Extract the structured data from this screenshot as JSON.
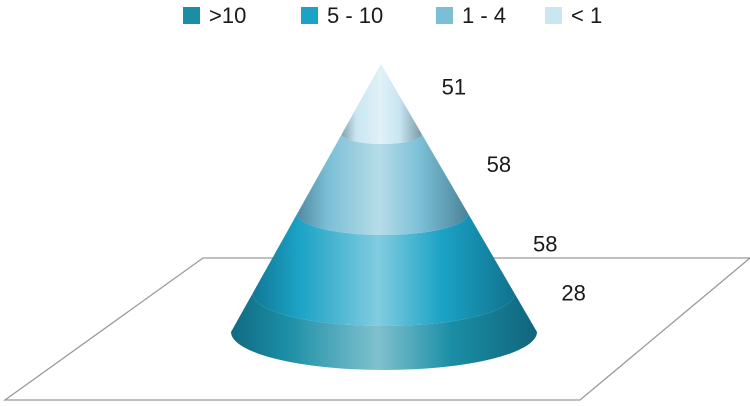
{
  "chart_data": {
    "type": "pyramid",
    "title": "",
    "legend_position": "top",
    "series": [
      {
        "name": ">10",
        "value": 28,
        "color": "#1a8ea6"
      },
      {
        "name": "5 - 10",
        "value": 58,
        "color": "#1ba3c6"
      },
      {
        "name": "1 - 4",
        "value": 58,
        "color": "#7bbfd6"
      },
      {
        "name": "< 1",
        "value": 51,
        "color": "#c9e6f1"
      }
    ]
  }
}
